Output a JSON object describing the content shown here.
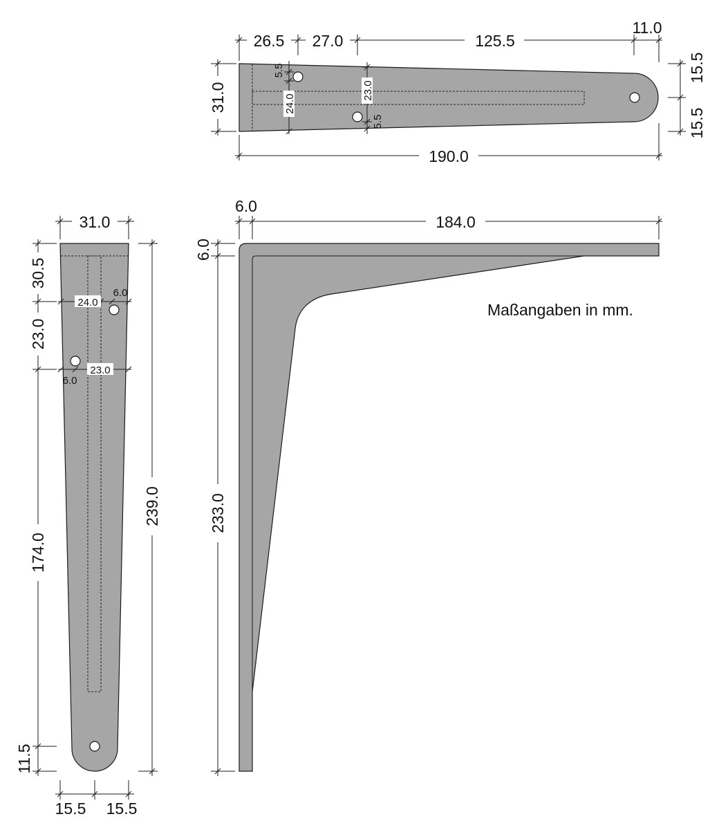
{
  "note": "Maßangaben in mm.",
  "top_view": {
    "dims": {
      "d1": "26.5",
      "d2": "27.0",
      "d3": "125.5",
      "d4": "11.0",
      "overall_length": "190.0",
      "height": "31.0",
      "right_upper": "15.5",
      "right_lower": "15.5",
      "hole1_offset": "5.5",
      "slot_width": "24.0",
      "hole_spacing": "23.0",
      "hole2_offset": "5.5"
    }
  },
  "front_view": {
    "dims": {
      "width": "31.0",
      "top_offset": "30.5",
      "hole_spacing_v": "23.0",
      "lower_run": "174.0",
      "end_radius": "11.5",
      "overall_height": "239.0",
      "slot_width": "24.0",
      "hole1_edge": "6.0",
      "hole2_edge": "6.0",
      "hole_spacing_h": "23.0",
      "bottom_left": "15.5",
      "bottom_right": "15.5"
    }
  },
  "side_view": {
    "dims": {
      "thickness_h": "6.0",
      "arm_length": "184.0",
      "thickness_v": "6.0",
      "height": "233.0"
    }
  }
}
